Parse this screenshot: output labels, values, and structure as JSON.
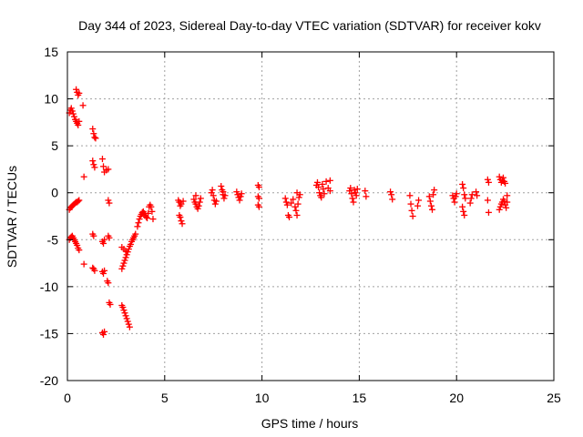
{
  "chart_data": {
    "type": "scatter",
    "title": "Day 344 of 2023, Sidereal Day-to-day VTEC variation (SDTVAR) for receiver kokv",
    "xlabel": "GPS time / hours",
    "ylabel": "SDTVAR / TECUs",
    "xlim": [
      0,
      25
    ],
    "ylim": [
      -20,
      15
    ],
    "xticks": [
      0,
      5,
      10,
      15,
      20,
      25
    ],
    "yticks": [
      -20,
      -15,
      -10,
      -5,
      0,
      5,
      10,
      15
    ],
    "grid": true,
    "marker": "+",
    "color": "#ff0000",
    "series": [
      {
        "name": "SDTVAR",
        "points": [
          [
            0.1,
            -1.8
          ],
          [
            0.15,
            -1.6
          ],
          [
            0.2,
            -1.5
          ],
          [
            0.25,
            -1.4
          ],
          [
            0.3,
            -1.3
          ],
          [
            0.35,
            -1.2
          ],
          [
            0.4,
            -1.1
          ],
          [
            0.45,
            -1.0
          ],
          [
            0.5,
            -1.0
          ],
          [
            0.55,
            -0.9
          ],
          [
            0.6,
            -0.8
          ],
          [
            0.1,
            -5.0
          ],
          [
            0.15,
            -4.8
          ],
          [
            0.2,
            -4.7
          ],
          [
            0.25,
            -4.6
          ],
          [
            0.3,
            -4.8
          ],
          [
            0.35,
            -5.0
          ],
          [
            0.4,
            -5.2
          ],
          [
            0.45,
            -5.4
          ],
          [
            0.5,
            -5.6
          ],
          [
            0.55,
            -5.9
          ],
          [
            0.6,
            -6.1
          ],
          [
            0.1,
            8.5
          ],
          [
            0.15,
            8.8
          ],
          [
            0.2,
            9.0
          ],
          [
            0.25,
            8.7
          ],
          [
            0.3,
            8.4
          ],
          [
            0.35,
            8.1
          ],
          [
            0.4,
            7.8
          ],
          [
            0.45,
            7.6
          ],
          [
            0.5,
            7.4
          ],
          [
            0.55,
            7.2
          ],
          [
            0.6,
            7.6
          ],
          [
            0.45,
            11.0
          ],
          [
            0.5,
            10.7
          ],
          [
            0.55,
            10.4
          ],
          [
            0.6,
            10.6
          ],
          [
            0.8,
            9.3
          ],
          [
            0.85,
            1.7
          ],
          [
            0.85,
            -7.6
          ],
          [
            1.3,
            6.8
          ],
          [
            1.35,
            6.3
          ],
          [
            1.4,
            5.9
          ],
          [
            1.45,
            5.8
          ],
          [
            1.3,
            3.4
          ],
          [
            1.35,
            3.0
          ],
          [
            1.4,
            2.7
          ],
          [
            1.3,
            -4.4
          ],
          [
            1.35,
            -4.6
          ],
          [
            1.3,
            -8.0
          ],
          [
            1.35,
            -8.1
          ],
          [
            1.4,
            -8.3
          ],
          [
            1.8,
            -5.2
          ],
          [
            1.85,
            -5.4
          ],
          [
            1.9,
            -5.0
          ],
          [
            1.8,
            -8.4
          ],
          [
            1.85,
            -8.6
          ],
          [
            1.9,
            -8.3
          ],
          [
            1.8,
            -14.9
          ],
          [
            1.85,
            -15.1
          ],
          [
            1.9,
            -14.8
          ],
          [
            1.8,
            3.6
          ],
          [
            1.85,
            2.8
          ],
          [
            1.9,
            2.2
          ],
          [
            2.0,
            2.4
          ],
          [
            2.1,
            2.5
          ],
          [
            2.1,
            -0.8
          ],
          [
            2.15,
            -1.1
          ],
          [
            2.1,
            -4.6
          ],
          [
            2.15,
            -4.8
          ],
          [
            2.05,
            -9.4
          ],
          [
            2.1,
            -9.6
          ],
          [
            2.15,
            -11.7
          ],
          [
            2.2,
            -11.9
          ],
          [
            2.8,
            -8.1
          ],
          [
            2.85,
            -7.8
          ],
          [
            2.9,
            -7.5
          ],
          [
            2.95,
            -7.2
          ],
          [
            3.0,
            -6.9
          ],
          [
            3.05,
            -6.6
          ],
          [
            3.1,
            -6.3
          ],
          [
            3.15,
            -6.0
          ],
          [
            3.2,
            -5.7
          ],
          [
            3.25,
            -5.5
          ],
          [
            3.3,
            -5.2
          ],
          [
            3.35,
            -5.0
          ],
          [
            3.4,
            -4.8
          ],
          [
            3.45,
            -4.6
          ],
          [
            3.5,
            -4.4
          ],
          [
            2.8,
            -5.8
          ],
          [
            2.9,
            -6.0
          ],
          [
            3.0,
            -6.2
          ],
          [
            2.8,
            -12.0
          ],
          [
            2.85,
            -12.2
          ],
          [
            2.9,
            -12.5
          ],
          [
            2.95,
            -12.8
          ],
          [
            3.0,
            -13.1
          ],
          [
            3.05,
            -13.4
          ],
          [
            3.1,
            -13.7
          ],
          [
            3.15,
            -14.0
          ],
          [
            3.2,
            -14.3
          ],
          [
            3.6,
            -3.6
          ],
          [
            3.65,
            -3.2
          ],
          [
            3.7,
            -2.8
          ],
          [
            3.75,
            -2.5
          ],
          [
            3.8,
            -2.3
          ],
          [
            3.85,
            -2.1
          ],
          [
            3.9,
            -2.0
          ],
          [
            3.95,
            -2.2
          ],
          [
            4.0,
            -2.4
          ],
          [
            4.05,
            -2.6
          ],
          [
            4.1,
            -2.7
          ],
          [
            4.15,
            -2.2
          ],
          [
            4.2,
            -1.5
          ],
          [
            4.25,
            -1.3
          ],
          [
            4.3,
            -1.5
          ],
          [
            4.35,
            -2.0
          ],
          [
            4.4,
            -2.8
          ],
          [
            5.7,
            -0.8
          ],
          [
            5.75,
            -1.0
          ],
          [
            5.8,
            -1.4
          ],
          [
            5.85,
            -1.2
          ],
          [
            5.75,
            -2.4
          ],
          [
            5.8,
            -2.6
          ],
          [
            5.85,
            -3.0
          ],
          [
            5.9,
            -3.3
          ],
          [
            5.95,
            -0.9
          ],
          [
            6.5,
            -0.7
          ],
          [
            6.55,
            -1.0
          ],
          [
            6.6,
            -1.2
          ],
          [
            6.65,
            -1.5
          ],
          [
            6.7,
            -1.7
          ],
          [
            6.75,
            -1.4
          ],
          [
            6.8,
            -1.0
          ],
          [
            6.85,
            -0.6
          ],
          [
            6.6,
            -0.3
          ],
          [
            7.4,
            0.0
          ],
          [
            7.45,
            0.3
          ],
          [
            7.5,
            -0.3
          ],
          [
            7.55,
            -0.8
          ],
          [
            7.6,
            -1.2
          ],
          [
            7.65,
            -0.9
          ],
          [
            7.9,
            0.7
          ],
          [
            7.95,
            0.3
          ],
          [
            8.0,
            -0.2
          ],
          [
            8.05,
            -0.6
          ],
          [
            8.1,
            -0.3
          ],
          [
            8.0,
            0.1
          ],
          [
            8.7,
            0.1
          ],
          [
            8.75,
            -0.2
          ],
          [
            8.8,
            -0.5
          ],
          [
            8.85,
            -0.8
          ],
          [
            8.9,
            -0.4
          ],
          [
            8.95,
            -0.1
          ],
          [
            9.8,
            0.8
          ],
          [
            9.85,
            0.6
          ],
          [
            9.8,
            -0.4
          ],
          [
            9.85,
            -0.6
          ],
          [
            9.8,
            -1.3
          ],
          [
            9.85,
            -1.5
          ],
          [
            11.2,
            -0.6
          ],
          [
            11.25,
            -1.0
          ],
          [
            11.3,
            -1.3
          ],
          [
            11.35,
            -2.4
          ],
          [
            11.4,
            -2.6
          ],
          [
            11.5,
            -1.1
          ],
          [
            11.6,
            -0.7
          ],
          [
            11.7,
            -1.5
          ],
          [
            11.75,
            -1.9
          ],
          [
            11.8,
            -2.4
          ],
          [
            11.85,
            -1.2
          ],
          [
            11.9,
            -0.5
          ],
          [
            11.95,
            -0.2
          ],
          [
            11.8,
            0.0
          ],
          [
            12.8,
            0.8
          ],
          [
            12.85,
            1.1
          ],
          [
            12.9,
            0.6
          ],
          [
            12.95,
            0.0
          ],
          [
            13.0,
            -0.3
          ],
          [
            13.05,
            -0.5
          ],
          [
            13.1,
            0.9
          ],
          [
            13.15,
            0.4
          ],
          [
            13.2,
            -0.1
          ],
          [
            13.3,
            1.2
          ],
          [
            13.4,
            0.5
          ],
          [
            13.5,
            1.3
          ],
          [
            13.5,
            0.2
          ],
          [
            14.5,
            0.2
          ],
          [
            14.55,
            0.5
          ],
          [
            14.6,
            -0.1
          ],
          [
            14.65,
            -0.6
          ],
          [
            14.7,
            -1.0
          ],
          [
            14.75,
            0.3
          ],
          [
            14.8,
            0.0
          ],
          [
            14.85,
            -0.3
          ],
          [
            14.9,
            0.4
          ],
          [
            15.3,
            0.2
          ],
          [
            15.35,
            -0.4
          ],
          [
            16.6,
            0.1
          ],
          [
            16.65,
            -0.2
          ],
          [
            16.7,
            -0.7
          ],
          [
            17.6,
            -0.3
          ],
          [
            17.65,
            -1.2
          ],
          [
            17.7,
            -1.9
          ],
          [
            17.75,
            -2.5
          ],
          [
            18.0,
            -1.4
          ],
          [
            18.05,
            -0.8
          ],
          [
            18.6,
            -0.4
          ],
          [
            18.65,
            -0.9
          ],
          [
            18.7,
            -1.4
          ],
          [
            18.75,
            -1.8
          ],
          [
            18.8,
            -0.2
          ],
          [
            18.85,
            0.3
          ],
          [
            19.8,
            -0.3
          ],
          [
            19.85,
            -0.6
          ],
          [
            19.9,
            -1.0
          ],
          [
            19.95,
            -0.4
          ],
          [
            20.0,
            -0.1
          ],
          [
            20.3,
            0.9
          ],
          [
            20.35,
            0.5
          ],
          [
            20.4,
            -0.2
          ],
          [
            20.45,
            -0.6
          ],
          [
            20.3,
            -1.5
          ],
          [
            20.35,
            -2.0
          ],
          [
            20.4,
            -2.4
          ],
          [
            20.7,
            -1.1
          ],
          [
            20.75,
            -0.6
          ],
          [
            20.8,
            -0.2
          ],
          [
            21.0,
            0.1
          ],
          [
            21.05,
            -0.3
          ],
          [
            21.6,
            1.4
          ],
          [
            21.65,
            1.1
          ],
          [
            21.6,
            -0.8
          ],
          [
            21.65,
            -2.1
          ],
          [
            22.2,
            1.7
          ],
          [
            22.25,
            1.4
          ],
          [
            22.3,
            1.1
          ],
          [
            22.35,
            1.3
          ],
          [
            22.4,
            1.6
          ],
          [
            22.45,
            1.2
          ],
          [
            22.5,
            1.0
          ],
          [
            22.2,
            -1.8
          ],
          [
            22.25,
            -1.5
          ],
          [
            22.3,
            -1.2
          ],
          [
            22.35,
            -1.0
          ],
          [
            22.4,
            -0.7
          ],
          [
            22.45,
            -0.9
          ],
          [
            22.5,
            -1.3
          ],
          [
            22.55,
            -1.6
          ],
          [
            22.6,
            -1.0
          ],
          [
            22.6,
            -0.3
          ]
        ]
      }
    ]
  }
}
